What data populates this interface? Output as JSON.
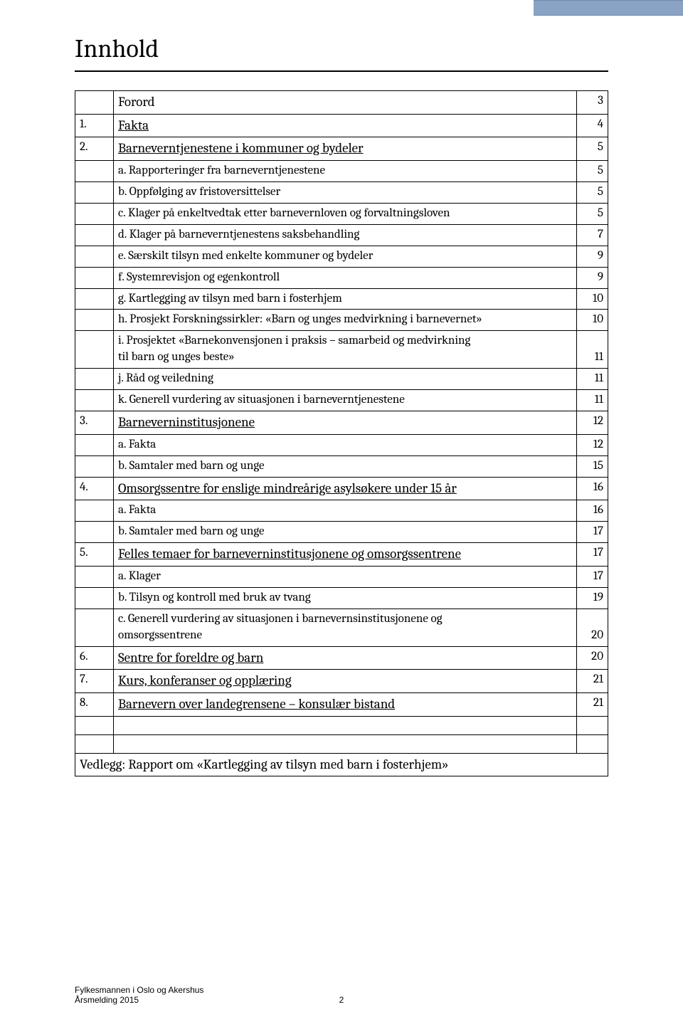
{
  "title": "Innhold",
  "header_stripe_color": "#8aa3c4",
  "rows": [
    {
      "num": "",
      "txt": "Forord",
      "page": "3",
      "indent": 0,
      "underline": false
    },
    {
      "num": "1.",
      "txt": "Fakta",
      "page": "4",
      "indent": 0,
      "underline": true
    },
    {
      "num": "2.",
      "txt": "Barneverntjenestene i kommuner og bydeler",
      "page": "5",
      "indent": 0,
      "underline": true
    },
    {
      "num": "",
      "txt": "a.   Rapporteringer fra barneverntjenestene",
      "page": "5",
      "indent": 1,
      "underline": false
    },
    {
      "num": "",
      "txt": "b.   Oppfølging av fristoversittelser",
      "page": "5",
      "indent": 1,
      "underline": false
    },
    {
      "num": "",
      "txt": "c.   Klager på enkeltvedtak etter barnevernloven og forvaltningsloven",
      "page": "5",
      "indent": 1,
      "underline": false
    },
    {
      "num": "",
      "txt": "d.   Klager på barneverntjenestens saksbehandling",
      "page": "7",
      "indent": 1,
      "underline": false
    },
    {
      "num": "",
      "txt": "e.   Særskilt tilsyn med enkelte kommuner og bydeler",
      "page": "9",
      "indent": 1,
      "underline": false
    },
    {
      "num": "",
      "txt": "f.    Systemrevisjon og egenkontroll",
      "page": "9",
      "indent": 1,
      "underline": false
    },
    {
      "num": "",
      "txt": "g.   Kartlegging av tilsyn med barn i fosterhjem",
      "page": "10",
      "indent": 1,
      "underline": false
    },
    {
      "num": "",
      "txt": "h.   Prosjekt Forskningssirkler: «Barn og unges medvirkning i barnevernet»",
      "page": "10",
      "indent": 1,
      "underline": false
    },
    {
      "num": "",
      "txt": "i.    Prosjektet «Barnekonvensjonen i praksis – samarbeid og medvirkning\n       til barn og unges beste»",
      "page": "11",
      "indent": 1,
      "underline": false,
      "multiline": true
    },
    {
      "num": "",
      "txt": "j.    Råd og veiledning",
      "page": "11",
      "indent": 1,
      "underline": false
    },
    {
      "num": "",
      "txt": "k.   Generell vurdering av situasjonen i barneverntjenestene",
      "page": "11",
      "indent": 1,
      "underline": false
    },
    {
      "num": "3.",
      "txt": "Barneverninstitusjonene",
      "page": "12",
      "indent": 0,
      "underline": true
    },
    {
      "num": "",
      "txt": "a.   Fakta",
      "page": "12",
      "indent": 1,
      "underline": false
    },
    {
      "num": "",
      "txt": "b.   Samtaler med barn og unge",
      "page": "15",
      "indent": 1,
      "underline": false
    },
    {
      "num": "4.",
      "txt": "Omsorgssentre for enslige mindreårige asylsøkere under 15 år",
      "page": "16",
      "indent": 0,
      "underline": true
    },
    {
      "num": "",
      "txt": "a.   Fakta",
      "page": "16",
      "indent": 1,
      "underline": false
    },
    {
      "num": "",
      "txt": "b.   Samtaler med barn og unge",
      "page": "17",
      "indent": 1,
      "underline": false
    },
    {
      "num": "5.",
      "txt": "Felles temaer for barneverninstitusjonene og omsorgssentrene",
      "page": "17",
      "indent": 0,
      "underline": true
    },
    {
      "num": "",
      "txt": "a.   Klager",
      "page": "17",
      "indent": 1,
      "underline": false
    },
    {
      "num": "",
      "txt": "b.   Tilsyn og kontroll med bruk av tvang",
      "page": "19",
      "indent": 1,
      "underline": false
    },
    {
      "num": "",
      "txt": "c.   Generell vurdering av situasjonen i barnevernsinstitusjonene og\n       omsorgssentrene",
      "page": "20",
      "indent": 1,
      "underline": false,
      "multiline": true
    },
    {
      "num": "6.",
      "txt": "Sentre for foreldre og barn",
      "page": "20",
      "indent": 0,
      "underline": true
    },
    {
      "num": "7.",
      "txt": "Kurs, konferanser og opplæring",
      "page": "21",
      "indent": 0,
      "underline": true
    },
    {
      "num": "8.",
      "txt": "Barnevern over landegrensene – konsulær bistand",
      "page": "21",
      "indent": 0,
      "underline": true
    },
    {
      "empty": true
    },
    {
      "empty": true
    },
    {
      "num": "",
      "txt": "Vedlegg: Rapport om «Kartlegging av tilsyn med barn i fosterhjem»",
      "page": "",
      "indent": 0,
      "underline": false,
      "colspan": 3
    }
  ],
  "footer": {
    "line1": "Fylkesmannen i Oslo og Akershus",
    "line2": "Årsmelding 2015",
    "page_number": "2"
  }
}
